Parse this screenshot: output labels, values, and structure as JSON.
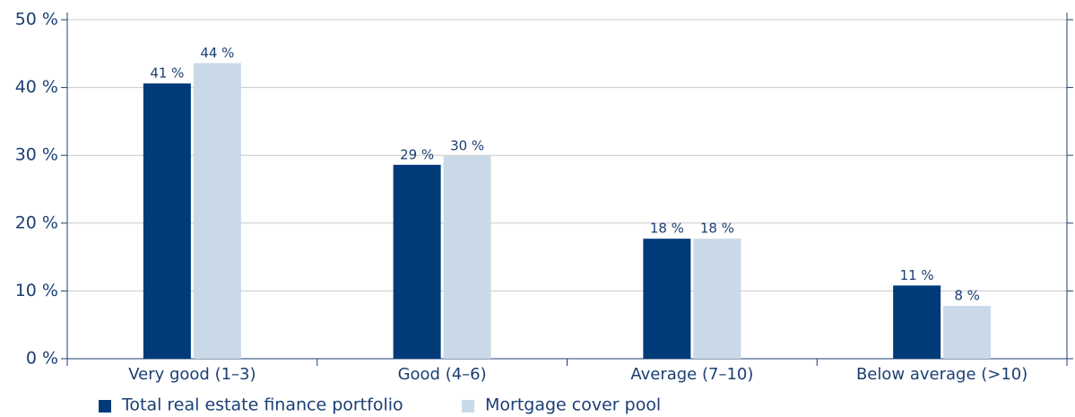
{
  "chart_data": {
    "type": "bar",
    "categories": [
      "Very good (1–3)",
      "Good (4–6)",
      "Average (7–10)",
      "Below average (>10)"
    ],
    "series": [
      {
        "name": "Total real estate finance portfolio",
        "color": "#003a78",
        "values": [
          40.6,
          28.6,
          17.7,
          10.8
        ],
        "value_labels": [
          "41 %",
          "29 %",
          "18 %",
          "11 %"
        ]
      },
      {
        "name": "Mortgage cover pool",
        "color": "#c9d9e8",
        "values": [
          43.6,
          29.9,
          17.7,
          7.8
        ],
        "value_labels": [
          "44 %",
          "30 %",
          "18 %",
          "8 %"
        ]
      }
    ],
    "ylim": [
      0,
      50
    ],
    "yticks": [
      {
        "value": 0,
        "label": "0 %"
      },
      {
        "value": 10,
        "label": "10 %"
      },
      {
        "value": 20,
        "label": "20 %"
      },
      {
        "value": 30,
        "label": "30 %"
      },
      {
        "value": 40,
        "label": "40 %"
      },
      {
        "value": 50,
        "label": "50 %"
      }
    ],
    "grid": true
  }
}
